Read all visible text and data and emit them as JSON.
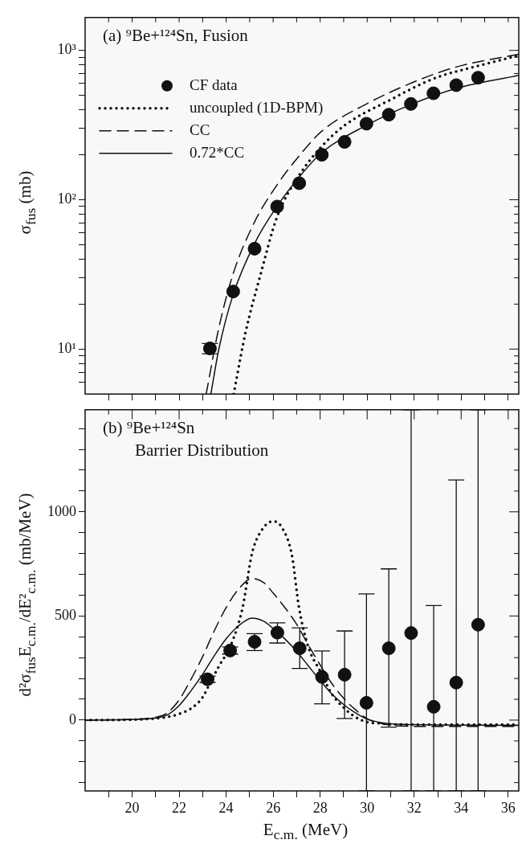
{
  "chart_data": [
    {
      "type": "scatter",
      "annotations": [
        "(a) ⁹Be+¹²⁴Sn, Fusion"
      ],
      "ylabel": "σ$_{fus}$ (mb)",
      "log": "y",
      "legend": "top left",
      "tick_labels": "y",
      "xlim": [
        18,
        36.45
      ],
      "xticks": [
        {
          "value": 19,
          "label": null
        },
        {
          "value": 20,
          "label": null
        },
        {
          "value": 21,
          "label": null
        },
        {
          "value": 22,
          "label": null
        },
        {
          "value": 23,
          "label": null
        },
        {
          "value": 24,
          "label": null
        },
        {
          "value": 25,
          "label": null
        },
        {
          "value": 26,
          "label": null
        },
        {
          "value": 27,
          "label": null
        },
        {
          "value": 28,
          "label": null
        },
        {
          "value": 29,
          "label": null
        },
        {
          "value": 30,
          "label": null
        },
        {
          "value": 31,
          "label": null
        },
        {
          "value": 32,
          "label": null
        },
        {
          "value": 33,
          "label": null
        },
        {
          "value": 34,
          "label": null
        },
        {
          "value": 35,
          "label": null
        },
        {
          "value": 36,
          "label": null
        }
      ],
      "ylim": [
        5,
        1660
      ],
      "yticks": [
        {
          "value": 6,
          "label": null
        },
        {
          "value": 7,
          "label": null
        },
        {
          "value": 8,
          "label": null
        },
        {
          "value": 9,
          "label": null
        },
        {
          "value": 10,
          "label": "10¹"
        },
        {
          "value": 20,
          "label": null
        },
        {
          "value": 30,
          "label": null
        },
        {
          "value": 40,
          "label": null
        },
        {
          "value": 50,
          "label": null
        },
        {
          "value": 60,
          "label": null
        },
        {
          "value": 70,
          "label": null
        },
        {
          "value": 80,
          "label": null
        },
        {
          "value": 90,
          "label": null
        },
        {
          "value": 100,
          "label": "10²"
        },
        {
          "value": 200,
          "label": null
        },
        {
          "value": 300,
          "label": null
        },
        {
          "value": 400,
          "label": null
        },
        {
          "value": 500,
          "label": null
        },
        {
          "value": 600,
          "label": null
        },
        {
          "value": 700,
          "label": null
        },
        {
          "value": 800,
          "label": null
        },
        {
          "value": 900,
          "label": null
        },
        {
          "value": 1000,
          "label": "10³"
        }
      ],
      "series": [
        {
          "name": "CF data",
          "marker": "circle",
          "color": "#111111",
          "x": [
            23.31,
            24.3,
            25.21,
            26.17,
            27.11,
            28.07,
            29.04,
            29.97,
            30.92,
            31.86,
            32.82,
            33.79,
            34.72
          ],
          "values": [
            10.1,
            24.3,
            47,
            90,
            129,
            200,
            244,
            323,
            371,
            438,
            516,
            585,
            656
          ],
          "errors": [
            [
              9.3,
              10.9
            ],
            null,
            null,
            null,
            null,
            null,
            null,
            null,
            null,
            null,
            null,
            null,
            null
          ]
        },
        {
          "name": "uncoupled (1D-BPM)",
          "type": "line",
          "line_style": "dotted",
          "color": "#111111",
          "x": [
            24.32,
            24.82,
            25.45,
            26.17,
            27.11,
            28.07,
            29.04,
            30.92,
            32.82,
            34.72,
            36.45
          ],
          "values": [
            5,
            12.8,
            31,
            77,
            146,
            228,
            315,
            461,
            646,
            788,
            925
          ]
        },
        {
          "name": "CC",
          "type": "line",
          "line_style": "dashed",
          "color": "#111111",
          "x": [
            23.15,
            23.69,
            24.3,
            25.21,
            26.17,
            27.11,
            28.07,
            29.97,
            31.86,
            33.79,
            36.45
          ],
          "values": [
            5,
            13.9,
            32,
            71,
            126,
            197,
            288,
            438,
            603,
            774,
            944
          ]
        },
        {
          "name": "0.72*CC",
          "type": "line",
          "line_style": "solid",
          "color": "#111111",
          "x": [
            23.35,
            23.69,
            24.3,
            25.21,
            26.17,
            27.11,
            28.07,
            29.97,
            31.86,
            33.79,
            36.45
          ],
          "values": [
            5,
            10,
            23.2,
            51,
            90.6,
            142,
            207,
            315,
            434,
            557,
            680
          ]
        }
      ]
    },
    {
      "type": "scatter",
      "annotations": [
        "(b) ⁹Be+¹²⁴Sn",
        "Barrier Distribution"
      ],
      "xlabel": "E$_{c.m.}$ (MeV)",
      "ylabel": "d²σ$_{fus}$E$_{c.m.}$/dE²$_{c.m.}$ (mb/MeV)",
      "xlim": [
        18,
        36.45
      ],
      "xticks": [
        {
          "value": 19,
          "label": null
        },
        20,
        {
          "value": 21,
          "label": null
        },
        22,
        {
          "value": 23,
          "label": null
        },
        24,
        {
          "value": 25,
          "label": null
        },
        26,
        {
          "value": 27,
          "label": null
        },
        28,
        {
          "value": 29,
          "label": null
        },
        30,
        {
          "value": 31,
          "label": null
        },
        32,
        {
          "value": 33,
          "label": null
        },
        34,
        {
          "value": 35,
          "label": null
        },
        36
      ],
      "ylim": [
        -340,
        1490
      ],
      "yticks": [
        {
          "value": -300,
          "label": null
        },
        {
          "value": -200,
          "label": null
        },
        {
          "value": -100,
          "label": null
        },
        0,
        {
          "value": 100,
          "label": null
        },
        {
          "value": 200,
          "label": null
        },
        {
          "value": 300,
          "label": null
        },
        {
          "value": 400,
          "label": null
        },
        500,
        {
          "value": 600,
          "label": null
        },
        {
          "value": 700,
          "label": null
        },
        {
          "value": 800,
          "label": null
        },
        {
          "value": 900,
          "label": null
        },
        1000,
        {
          "value": 1100,
          "label": null
        },
        {
          "value": 1200,
          "label": null
        },
        {
          "value": 1300,
          "label": null
        },
        {
          "value": 1400,
          "label": null
        }
      ],
      "series": [
        {
          "marker": "circle",
          "color": "#111111",
          "x": [
            23.21,
            24.17,
            25.21,
            26.18,
            27.13,
            28.08,
            29.04,
            29.97,
            30.92,
            31.87,
            32.83,
            33.79,
            34.72
          ],
          "values": [
            196,
            334,
            376,
            420,
            345,
            207,
            218,
            83,
            345,
            418,
            64,
            180,
            458
          ],
          "errors": [
            15,
            17,
            [
              334,
              415
            ],
            [
              370,
              467
            ],
            [
              248,
              443
            ],
            [
              78,
              332
            ],
            [
              8,
              428
            ],
            [
              -340,
              606
            ],
            [
              -34,
              726
            ],
            [
              -340,
              1490
            ],
            [
              -340,
              550
            ],
            [
              -340,
              1153
            ],
            [
              -340,
              1490
            ]
          ]
        },
        {
          "type": "line",
          "line_style": "dotted",
          "color": "#111111",
          "x": [
            18,
            20,
            21,
            21.5,
            22,
            22.5,
            23,
            23.3,
            23.7,
            24.2,
            24.7,
            25.1,
            25.5,
            26,
            26.4,
            26.8,
            27.1,
            27.5,
            28,
            28.5,
            29,
            29.5,
            30,
            30.5,
            31,
            33,
            36.45
          ],
          "values": [
            0,
            2,
            8,
            15,
            30,
            55,
            110,
            175,
            260,
            360,
            540,
            800,
            910,
            955,
            920,
            790,
            540,
            350,
            235,
            125,
            60,
            15,
            -10,
            -15,
            -20,
            -22,
            -22
          ]
        },
        {
          "type": "line",
          "line_style": "dashed",
          "color": "#111111",
          "x": [
            18,
            20,
            21,
            21.5,
            22,
            22.5,
            23,
            23.5,
            24,
            24.5,
            25.1,
            25.6,
            26,
            26.5,
            27,
            27.5,
            28,
            28.5,
            29,
            29.5,
            30,
            30.5,
            31,
            32,
            36.45
          ],
          "values": [
            0,
            4,
            14,
            35,
            97,
            195,
            305,
            430,
            540,
            625,
            680,
            660,
            610,
            540,
            460,
            360,
            265,
            175,
            105,
            50,
            7,
            -14,
            -25,
            -30,
            -30
          ]
        },
        {
          "type": "line",
          "line_style": "solid",
          "color": "#111111",
          "x": [
            18,
            20,
            21,
            21.5,
            22,
            22.5,
            23,
            23.5,
            24,
            24.5,
            25.1,
            25.6,
            26,
            26.5,
            27,
            27.5,
            28,
            28.5,
            29,
            29.5,
            30,
            30.5,
            31,
            32,
            36.45
          ],
          "values": [
            0,
            3,
            10,
            25,
            70,
            140,
            220,
            310,
            390,
            450,
            490,
            475,
            440,
            390,
            330,
            260,
            190,
            125,
            75,
            35,
            5,
            -10,
            -18,
            -22,
            -25
          ]
        }
      ]
    }
  ]
}
